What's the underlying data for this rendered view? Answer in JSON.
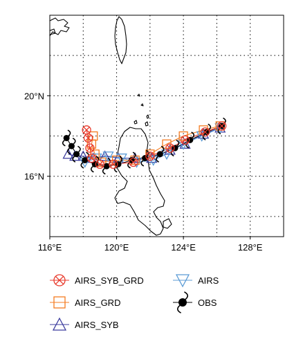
{
  "chart_data": {
    "type": "map-tracks",
    "title": "",
    "lon_range": [
      116,
      130
    ],
    "lat_range": [
      13,
      24
    ],
    "x_ticks": [
      {
        "value": 116,
        "label": "116°E"
      },
      {
        "value": 120,
        "label": "120°E"
      },
      {
        "value": 124,
        "label": "124°E"
      },
      {
        "value": 128,
        "label": "128°E"
      }
    ],
    "y_ticks": [
      {
        "value": 16,
        "label": "16°N"
      },
      {
        "value": 20,
        "label": "20°N"
      }
    ],
    "grid": "dotted",
    "legend_position": "bottom",
    "series": [
      {
        "name": "AIRS_SYB_GRD",
        "color": "#e8392b",
        "marker": "circle-x",
        "points": [
          [
            126.3,
            18.5
          ],
          [
            125.3,
            18.2
          ],
          [
            124.1,
            17.8
          ],
          [
            123.2,
            17.4
          ],
          [
            122.0,
            17.0
          ],
          [
            121.0,
            16.7
          ],
          [
            119.8,
            16.6
          ],
          [
            119.0,
            16.6
          ],
          [
            118.5,
            16.9
          ],
          [
            118.4,
            17.4
          ],
          [
            118.3,
            17.9
          ],
          [
            118.2,
            18.3
          ]
        ]
      },
      {
        "name": "AIRS_GRD",
        "color": "#f47b20",
        "marker": "square",
        "points": [
          [
            126.2,
            18.5
          ],
          [
            125.2,
            18.3
          ],
          [
            124.0,
            18.0
          ],
          [
            123.0,
            17.6
          ],
          [
            122.0,
            17.1
          ],
          [
            121.1,
            16.8
          ],
          [
            120.0,
            16.8
          ],
          [
            119.1,
            16.7
          ],
          [
            118.7,
            17.1
          ],
          [
            118.5,
            17.6
          ],
          [
            118.6,
            18.0
          ]
        ]
      },
      {
        "name": "AIRS_SYB",
        "color": "#3c3c9e",
        "marker": "triangle-up",
        "points": [
          [
            126.2,
            18.4
          ],
          [
            125.2,
            18.1
          ],
          [
            124.1,
            17.6
          ],
          [
            123.2,
            17.3
          ],
          [
            122.1,
            16.9
          ],
          [
            121.1,
            16.9
          ],
          [
            120.1,
            16.9
          ],
          [
            119.3,
            17.0
          ],
          [
            118.6,
            16.9
          ],
          [
            118.0,
            17.0
          ],
          [
            117.5,
            17.0
          ],
          [
            117.1,
            17.1
          ]
        ]
      },
      {
        "name": "AIRS",
        "color": "#5b9bd5",
        "marker": "triangle-down",
        "points": [
          [
            126.2,
            18.4
          ],
          [
            125.1,
            18.0
          ],
          [
            124.0,
            17.6
          ],
          [
            123.0,
            17.1
          ],
          [
            122.2,
            16.8
          ],
          [
            121.2,
            16.7
          ],
          [
            120.3,
            16.9
          ],
          [
            119.5,
            17.0
          ],
          [
            118.8,
            16.9
          ],
          [
            118.1,
            16.7
          ]
        ]
      },
      {
        "name": "OBS",
        "color": "#000000",
        "marker": "typhoon",
        "points": [
          [
            126.3,
            18.5
          ],
          [
            125.4,
            18.2
          ],
          [
            124.4,
            17.8
          ],
          [
            123.5,
            17.4
          ],
          [
            122.6,
            17.1
          ],
          [
            121.7,
            16.9
          ],
          [
            120.9,
            16.8
          ],
          [
            120.1,
            16.6
          ],
          [
            119.4,
            16.5
          ],
          [
            118.7,
            16.6
          ],
          [
            118.1,
            16.8
          ],
          [
            117.6,
            17.1
          ],
          [
            117.3,
            17.5
          ],
          [
            117.0,
            17.9
          ]
        ]
      }
    ]
  },
  "colors": {
    "land_outline": "#000000",
    "grid": "#000000",
    "background": "#ffffff"
  }
}
